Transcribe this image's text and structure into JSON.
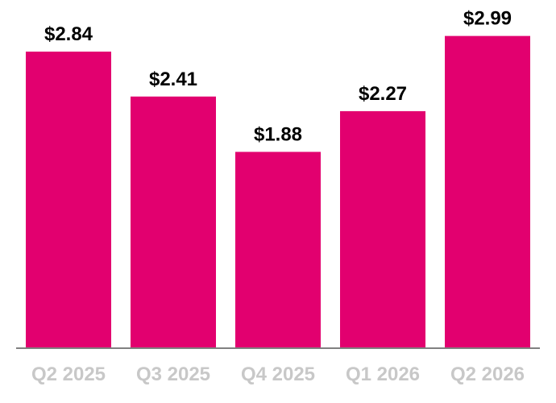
{
  "chart_data": {
    "type": "bar",
    "categories": [
      "Q2 2025",
      "Q3 2025",
      "Q4 2025",
      "Q1 2026",
      "Q2 2026"
    ],
    "values": [
      2.84,
      2.41,
      1.88,
      2.27,
      2.99
    ],
    "data_labels": [
      "$2.84",
      "$2.41",
      "$1.88",
      "$2.27",
      "$2.99"
    ],
    "title": "",
    "xlabel": "",
    "ylabel": "",
    "ylim": [
      0,
      3.0
    ],
    "grid": false,
    "legend": "none",
    "bar_color": "#e2006f",
    "axis_color": "#808080",
    "tick_label_color": "#c8c8c8",
    "value_label_color": "#000000"
  }
}
